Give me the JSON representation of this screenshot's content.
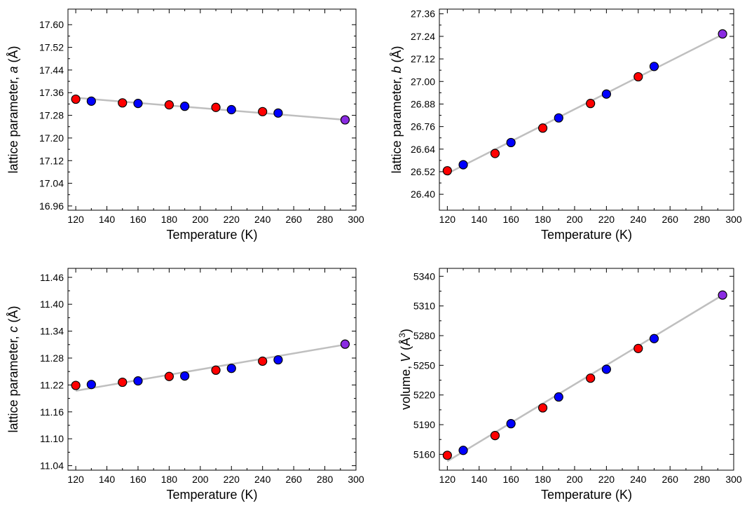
{
  "chart_data": [
    {
      "type": "scatter",
      "xlabel": "Temperature (K)",
      "ylabel": "lattice parameter, ",
      "ylabel_symbol": "a",
      "ylabel_unit": " (Å)",
      "xlim": [
        115,
        300
      ],
      "ylim": [
        16.945,
        17.655
      ],
      "xticks": [
        120,
        140,
        160,
        180,
        200,
        220,
        240,
        260,
        280,
        300
      ],
      "yticks": [
        "16.96",
        "17.04",
        "17.12",
        "17.20",
        "17.28",
        "17.36",
        "17.44",
        "17.52",
        "17.60"
      ],
      "fit": {
        "x": [
          120,
          293
        ],
        "y": [
          17.342,
          17.264
        ]
      },
      "points": [
        {
          "x": 120,
          "y": 17.337,
          "c": "red"
        },
        {
          "x": 130,
          "y": 17.33,
          "c": "blue"
        },
        {
          "x": 150,
          "y": 17.324,
          "c": "red"
        },
        {
          "x": 160,
          "y": 17.322,
          "c": "blue"
        },
        {
          "x": 180,
          "y": 17.317,
          "c": "red"
        },
        {
          "x": 190,
          "y": 17.312,
          "c": "blue"
        },
        {
          "x": 210,
          "y": 17.308,
          "c": "red"
        },
        {
          "x": 220,
          "y": 17.3,
          "c": "blue"
        },
        {
          "x": 240,
          "y": 17.293,
          "c": "red"
        },
        {
          "x": 250,
          "y": 17.288,
          "c": "blue"
        },
        {
          "x": 293,
          "y": 17.264,
          "c": "purple"
        }
      ]
    },
    {
      "type": "scatter",
      "xlabel": "Temperature (K)",
      "ylabel": "lattice parameter, ",
      "ylabel_symbol": "b",
      "ylabel_unit": " (Å)",
      "xlim": [
        115,
        300
      ],
      "ylim": [
        26.315,
        27.385
      ],
      "xticks": [
        120,
        140,
        160,
        180,
        200,
        220,
        240,
        260,
        280,
        300
      ],
      "yticks": [
        "26.40",
        "26.52",
        "26.64",
        "26.76",
        "26.88",
        "27.00",
        "27.12",
        "27.24",
        "27.36"
      ],
      "fit": {
        "x": [
          120,
          293
        ],
        "y": [
          26.51,
          27.25
        ]
      },
      "points": [
        {
          "x": 120,
          "y": 26.525,
          "c": "red"
        },
        {
          "x": 130,
          "y": 26.557,
          "c": "blue"
        },
        {
          "x": 150,
          "y": 26.617,
          "c": "red"
        },
        {
          "x": 160,
          "y": 26.675,
          "c": "blue"
        },
        {
          "x": 180,
          "y": 26.752,
          "c": "red"
        },
        {
          "x": 190,
          "y": 26.806,
          "c": "blue"
        },
        {
          "x": 210,
          "y": 26.883,
          "c": "red"
        },
        {
          "x": 220,
          "y": 26.933,
          "c": "blue"
        },
        {
          "x": 240,
          "y": 27.025,
          "c": "red"
        },
        {
          "x": 250,
          "y": 27.08,
          "c": "blue"
        },
        {
          "x": 293,
          "y": 27.253,
          "c": "purple"
        }
      ]
    },
    {
      "type": "scatter",
      "xlabel": "Temperature (K)",
      "ylabel": "lattice parameter, ",
      "ylabel_symbol": "c",
      "ylabel_unit": " (Å)",
      "xlim": [
        115,
        300
      ],
      "ylim": [
        11.03,
        11.48
      ],
      "xticks": [
        120,
        140,
        160,
        180,
        200,
        220,
        240,
        260,
        280,
        300
      ],
      "yticks": [
        "11.04",
        "11.10",
        "11.16",
        "11.22",
        "11.28",
        "11.34",
        "11.40",
        "11.46"
      ],
      "fit": {
        "x": [
          120,
          293
        ],
        "y": [
          11.207,
          11.31
        ]
      },
      "points": [
        {
          "x": 120,
          "y": 11.219,
          "c": "red"
        },
        {
          "x": 130,
          "y": 11.221,
          "c": "blue"
        },
        {
          "x": 150,
          "y": 11.226,
          "c": "red"
        },
        {
          "x": 160,
          "y": 11.229,
          "c": "blue"
        },
        {
          "x": 180,
          "y": 11.239,
          "c": "red"
        },
        {
          "x": 190,
          "y": 11.24,
          "c": "blue"
        },
        {
          "x": 210,
          "y": 11.253,
          "c": "red"
        },
        {
          "x": 220,
          "y": 11.257,
          "c": "blue"
        },
        {
          "x": 240,
          "y": 11.273,
          "c": "red"
        },
        {
          "x": 250,
          "y": 11.276,
          "c": "blue"
        },
        {
          "x": 293,
          "y": 11.311,
          "c": "purple"
        }
      ]
    },
    {
      "type": "scatter",
      "xlabel": "Temperature (K)",
      "ylabel": "volume, ",
      "ylabel_symbol": "V",
      "ylabel_unit": " (Å",
      "ylabel_sup": "3",
      "ylabel_close": ")",
      "xlim": [
        115,
        300
      ],
      "ylim": [
        5144,
        5348
      ],
      "xticks": [
        120,
        140,
        160,
        180,
        200,
        220,
        240,
        260,
        280,
        300
      ],
      "yticks": [
        "5160",
        "5190",
        "5220",
        "5250",
        "5280",
        "5310",
        "5340"
      ],
      "fit": {
        "x": [
          120,
          293
        ],
        "y": [
          5153,
          5321
        ]
      },
      "points": [
        {
          "x": 120,
          "y": 5159,
          "c": "red"
        },
        {
          "x": 130,
          "y": 5164,
          "c": "blue"
        },
        {
          "x": 150,
          "y": 5179,
          "c": "red"
        },
        {
          "x": 160,
          "y": 5191,
          "c": "blue"
        },
        {
          "x": 180,
          "y": 5207,
          "c": "red"
        },
        {
          "x": 190,
          "y": 5218,
          "c": "blue"
        },
        {
          "x": 210,
          "y": 5237,
          "c": "red"
        },
        {
          "x": 220,
          "y": 5246,
          "c": "blue"
        },
        {
          "x": 240,
          "y": 5267,
          "c": "red"
        },
        {
          "x": 250,
          "y": 5277,
          "c": "blue"
        },
        {
          "x": 293,
          "y": 5321,
          "c": "purple"
        }
      ]
    }
  ],
  "colors": {
    "red": "#ff0000",
    "blue": "#0000ff",
    "purple": "#8a2be2",
    "fit": "#bfbfbf"
  }
}
